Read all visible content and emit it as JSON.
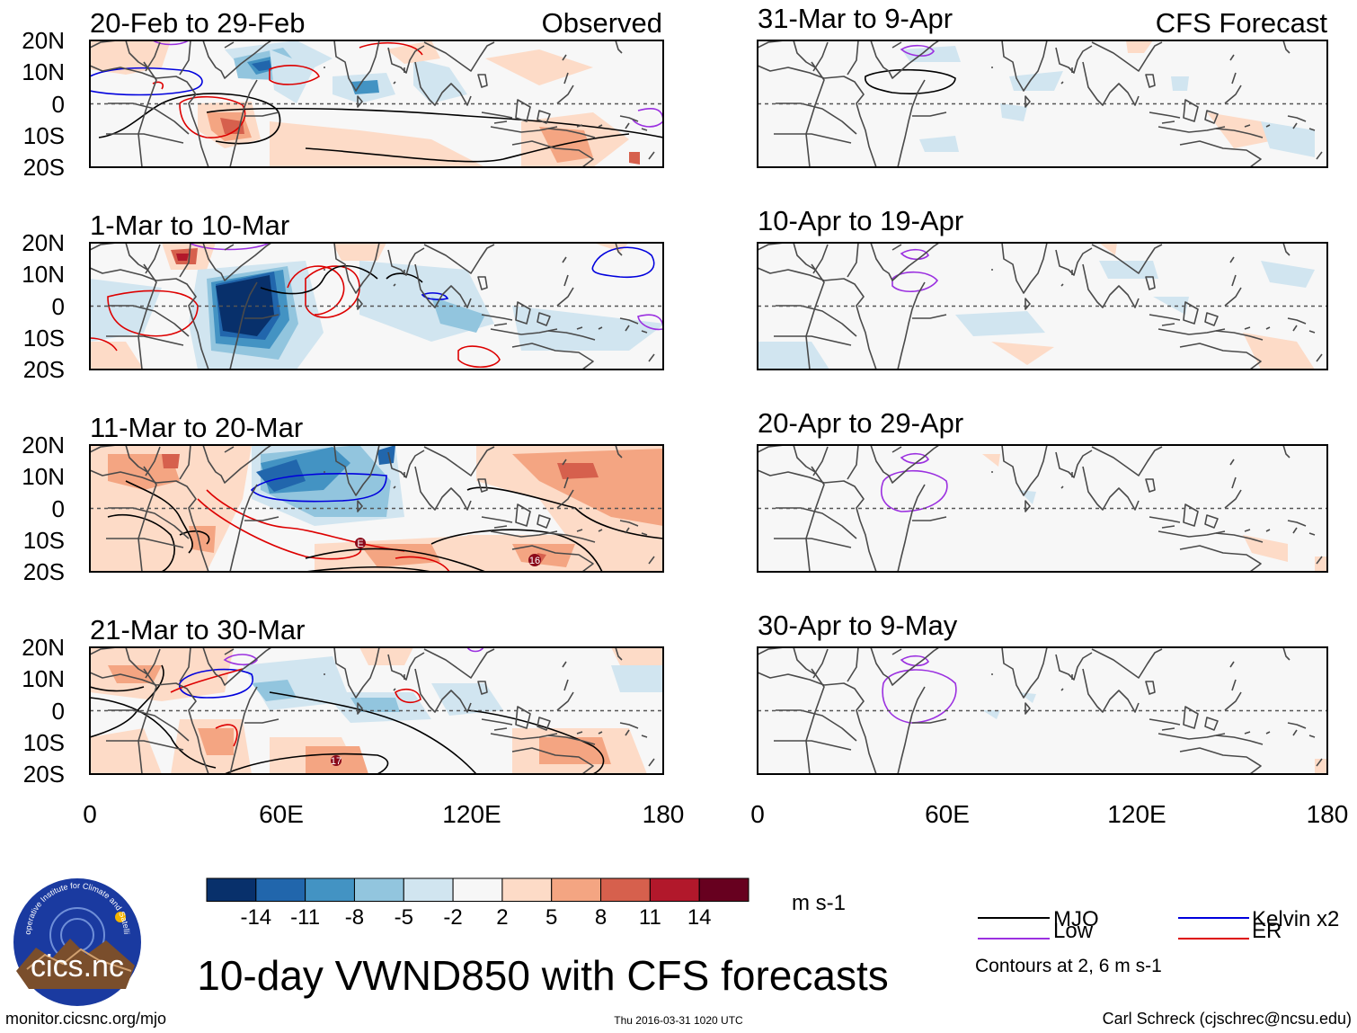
{
  "panels_observed": [
    {
      "period": "20-Feb to 29-Feb",
      "label": "Observed"
    },
    {
      "period": "1-Mar to 10-Mar",
      "label": ""
    },
    {
      "period": "11-Mar to 20-Mar",
      "label": ""
    },
    {
      "period": "21-Mar to 30-Mar",
      "label": ""
    }
  ],
  "panels_forecast": [
    {
      "period": "31-Mar to 9-Apr",
      "label": "CFS Forecast"
    },
    {
      "period": "10-Apr to 19-Apr",
      "label": ""
    },
    {
      "period": "20-Apr to 29-Apr",
      "label": ""
    },
    {
      "period": "30-Apr to 9-May",
      "label": ""
    }
  ],
  "lat_labels": [
    "20N",
    "10N",
    "0",
    "10S",
    "20S"
  ],
  "lon_labels": [
    "0",
    "60E",
    "120E",
    "180"
  ],
  "storm_markers": [
    "E",
    "16",
    "17"
  ],
  "colorbar": {
    "units": "m s-1",
    "colors": [
      "#08306b",
      "#2166ac",
      "#4393c3",
      "#92c5de",
      "#d1e5f0",
      "#f7f7f7",
      "#fddbc7",
      "#f4a582",
      "#d6604d",
      "#b2182b",
      "#67001f"
    ],
    "labels": [
      "-14",
      "-11",
      "-8",
      "-5",
      "-2",
      "2",
      "5",
      "8",
      "11",
      "14"
    ]
  },
  "title": "10-day VWND850 with CFS forecasts",
  "logo": {
    "ring_text": "Cooperative Institute for Climate and Satellites",
    "name": "cics.nc"
  },
  "legend": {
    "items": [
      {
        "label": "MJO",
        "color": "#000000"
      },
      {
        "label": "Kelvin x2",
        "color": "#0000dd"
      },
      {
        "label": "Low",
        "color": "#9b30e0"
      },
      {
        "label": "ER",
        "color": "#dd0000"
      }
    ],
    "note": "Contours at 2, 6 m s-1"
  },
  "footer": {
    "left": "monitor.cicsnc.org/mjo",
    "center": "Thu 2016-03-31 1020 UTC",
    "right": "Carl Schreck (cjschrec@ncsu.edu)"
  }
}
